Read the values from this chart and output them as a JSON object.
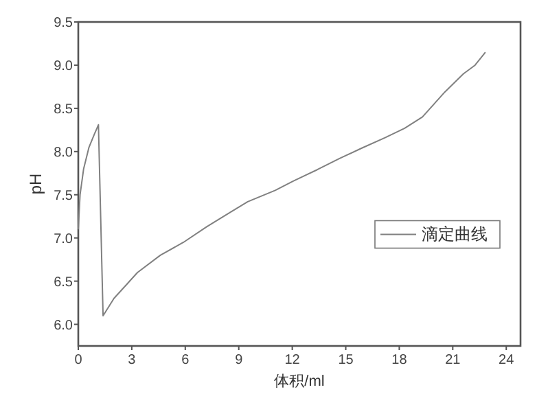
{
  "chart_data": {
    "type": "line",
    "xlabel": "体积/ml",
    "ylabel": "pH",
    "xlim": [
      0,
      24.8
    ],
    "ylim": [
      5.75,
      9.5
    ],
    "xticks": [
      0,
      3,
      6,
      9,
      12,
      15,
      18,
      21,
      24
    ],
    "yticks": [
      {
        "value": 6,
        "label": "6.0"
      },
      {
        "value": 6.5,
        "label": "6.5"
      },
      {
        "value": 7,
        "label": "7.0"
      },
      {
        "value": 7.5,
        "label": "7.5"
      },
      {
        "value": 8,
        "label": "8.0"
      },
      {
        "value": 8.5,
        "label": "8.5"
      },
      {
        "value": 9,
        "label": "9.0"
      },
      {
        "value": 9.5,
        "label": "9.5"
      }
    ],
    "legend": "right",
    "grid": false,
    "series": [
      {
        "name": "滴定曲线",
        "color": "#808080",
        "x": [
          0,
          0.1,
          0.3,
          0.6,
          0.9,
          1.13,
          1.39,
          2,
          3.32,
          4.6,
          5.9,
          7.2,
          8.47,
          9.5,
          11.04,
          12.07,
          13.4,
          14.65,
          15.9,
          17.2,
          18.3,
          19.3,
          20.56,
          21.6,
          22.25,
          22.83
        ],
        "values": [
          7.1,
          7.5,
          7.8,
          8.05,
          8.2,
          8.31,
          6.1,
          6.3,
          6.6,
          6.8,
          6.95,
          7.13,
          7.29,
          7.42,
          7.55,
          7.66,
          7.79,
          7.92,
          8.04,
          8.16,
          8.27,
          8.4,
          8.69,
          8.9,
          9.0,
          9.15
        ]
      }
    ]
  }
}
